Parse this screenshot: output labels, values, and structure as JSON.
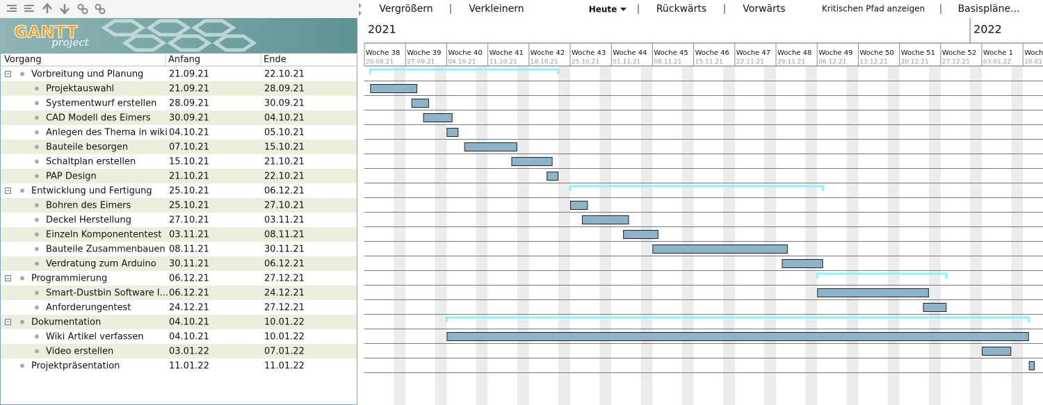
{
  "toolbar": {
    "items": [
      "Vergrößern",
      "Verkleinern",
      "Heute",
      "Rückwärts",
      "Vorwärts",
      "Kritischen Pfad anzeigen",
      "Basispläne..."
    ]
  },
  "logo": {
    "title": "GANTT",
    "subtitle": "project"
  },
  "table": {
    "headers": [
      "Vorgang",
      "Anfang",
      "Ende"
    ],
    "tasks": [
      {
        "name": "Vorbreitung und Planung",
        "start": "21.09.21",
        "end": "22.10.21",
        "level": 0,
        "summary": true
      },
      {
        "name": "Projektauswahl",
        "start": "21.09.21",
        "end": "28.09.21",
        "level": 1,
        "summary": false
      },
      {
        "name": "Systementwurf erstellen",
        "start": "28.09.21",
        "end": "30.09.21",
        "level": 1,
        "summary": false
      },
      {
        "name": "CAD Modell des Eimers",
        "start": "30.09.21",
        "end": "04.10.21",
        "level": 1,
        "summary": false
      },
      {
        "name": "Anlegen des Thema in wiki",
        "start": "04.10.21",
        "end": "05.10.21",
        "level": 1,
        "summary": false
      },
      {
        "name": "Bauteile besorgen",
        "start": "07.10.21",
        "end": "15.10.21",
        "level": 1,
        "summary": false
      },
      {
        "name": "Schaltplan erstellen",
        "start": "15.10.21",
        "end": "21.10.21",
        "level": 1,
        "summary": false
      },
      {
        "name": "PAP Design",
        "start": "21.10.21",
        "end": "22.10.21",
        "level": 1,
        "summary": false
      },
      {
        "name": "Entwicklung und Fertigung",
        "start": "25.10.21",
        "end": "06.12.21",
        "level": 0,
        "summary": true
      },
      {
        "name": "Bohren des Eimers",
        "start": "25.10.21",
        "end": "27.10.21",
        "level": 1,
        "summary": false
      },
      {
        "name": "Deckel Herstellung",
        "start": "27.10.21",
        "end": "03.11.21",
        "level": 1,
        "summary": false
      },
      {
        "name": "Einzeln Komponententest",
        "start": "03.11.21",
        "end": "08.11.21",
        "level": 1,
        "summary": false
      },
      {
        "name": "Bauteile Zusammenbauen",
        "start": "08.11.21",
        "end": "30.11.21",
        "level": 1,
        "summary": false
      },
      {
        "name": "Verdratung zum Arduino",
        "start": "30.11.21",
        "end": "06.12.21",
        "level": 1,
        "summary": false
      },
      {
        "name": "Programmierung",
        "start": "06.12.21",
        "end": "27.12.21",
        "level": 0,
        "summary": true
      },
      {
        "name": "Smart-Dustbin Software I...",
        "start": "06.12.21",
        "end": "24.12.21",
        "level": 1,
        "summary": false
      },
      {
        "name": "Anforderungentest",
        "start": "24.12.21",
        "end": "27.12.21",
        "level": 1,
        "summary": false
      },
      {
        "name": "Dokumentation",
        "start": "04.10.21",
        "end": "10.01.22",
        "level": 0,
        "summary": true
      },
      {
        "name": "Wiki Artikel verfassen",
        "start": "04.10.21",
        "end": "10.01.22",
        "level": 1,
        "summary": false
      },
      {
        "name": "Video erstellen",
        "start": "03.01.22",
        "end": "07.01.22",
        "level": 1,
        "summary": false
      },
      {
        "name": "Projektpräsentation",
        "start": "11.01.22",
        "end": "11.01.22",
        "level": 0,
        "summary": false
      }
    ]
  },
  "timeline": {
    "years": [
      "2021",
      "2022"
    ],
    "weeks": [
      {
        "label": "Woche 38",
        "date": "20.09.21"
      },
      {
        "label": "Woche 39",
        "date": "27.09.21"
      },
      {
        "label": "Woche 40",
        "date": "04.10.21"
      },
      {
        "label": "Woche 41",
        "date": "11.10.21"
      },
      {
        "label": "Woche 42",
        "date": "18.10.21"
      },
      {
        "label": "Woche 43",
        "date": "25.10.21"
      },
      {
        "label": "Woche 44",
        "date": "01.11.21"
      },
      {
        "label": "Woche 45",
        "date": "08.11.21"
      },
      {
        "label": "Woche 46",
        "date": "15.11.21"
      },
      {
        "label": "Woche 47",
        "date": "22.11.21"
      },
      {
        "label": "Woche 48",
        "date": "29.11.21"
      },
      {
        "label": "Woche 49",
        "date": "06.12.21"
      },
      {
        "label": "Woche 50",
        "date": "13.12.21"
      },
      {
        "label": "Woche 51",
        "date": "20.12.21"
      },
      {
        "label": "Woche 52",
        "date": "27.12.21"
      },
      {
        "label": "Woche 1",
        "date": "03.01.22"
      },
      {
        "label": "Woche",
        "date": "10.01."
      }
    ]
  }
}
